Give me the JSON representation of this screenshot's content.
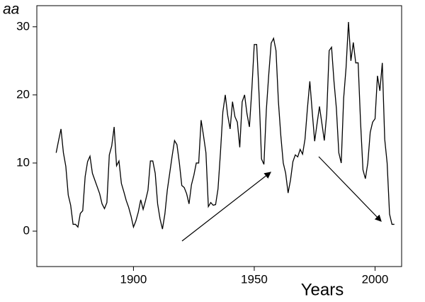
{
  "chart_data": {
    "type": "line",
    "y_label": "aa",
    "x_label": "Years",
    "color": "#000000",
    "x": [
      1868,
      1869,
      1870,
      1871,
      1872,
      1873,
      1874,
      1875,
      1876,
      1877,
      1878,
      1879,
      1880,
      1881,
      1882,
      1883,
      1884,
      1885,
      1886,
      1887,
      1888,
      1889,
      1890,
      1891,
      1892,
      1893,
      1894,
      1895,
      1896,
      1897,
      1898,
      1899,
      1900,
      1901,
      1902,
      1903,
      1904,
      1905,
      1906,
      1907,
      1908,
      1909,
      1910,
      1911,
      1912,
      1913,
      1914,
      1915,
      1916,
      1917,
      1918,
      1919,
      1920,
      1921,
      1922,
      1923,
      1924,
      1925,
      1926,
      1927,
      1928,
      1929,
      1930,
      1931,
      1932,
      1933,
      1934,
      1935,
      1936,
      1937,
      1938,
      1939,
      1940,
      1941,
      1942,
      1943,
      1944,
      1945,
      1946,
      1947,
      1948,
      1949,
      1950,
      1951,
      1952,
      1953,
      1954,
      1955,
      1956,
      1957,
      1958,
      1959,
      1960,
      1961,
      1962,
      1963,
      1964,
      1965,
      1966,
      1967,
      1968,
      1969,
      1970,
      1971,
      1972,
      1973,
      1974,
      1975,
      1976,
      1977,
      1978,
      1979,
      1980,
      1981,
      1982,
      1983,
      1984,
      1985,
      1986,
      1987,
      1988,
      1989,
      1990,
      1991,
      1992,
      1993,
      1994,
      1995,
      1996,
      1997,
      1998,
      1999,
      2000,
      2001,
      2002,
      2003,
      2004,
      2005,
      2006,
      2007,
      2008
    ],
    "values": [
      11.5,
      13.3,
      15.0,
      11.5,
      9.5,
      5.3,
      3.8,
      1.0,
      1.0,
      0.6,
      2.6,
      3.0,
      8.0,
      10.2,
      11.0,
      8.5,
      7.5,
      6.5,
      5.5,
      4.0,
      3.3,
      4.2,
      11.2,
      12.5,
      15.3,
      9.6,
      10.3,
      7.0,
      5.8,
      4.5,
      3.5,
      2.2,
      0.6,
      1.5,
      2.8,
      4.6,
      3.2,
      4.5,
      6.0,
      10.3,
      10.3,
      8.5,
      4.0,
      1.8,
      0.3,
      2.5,
      6.0,
      8.5,
      11.0,
      13.3,
      12.7,
      10.0,
      6.7,
      6.4,
      5.5,
      4.0,
      6.8,
      8.2,
      10.0,
      10.0,
      16.3,
      14.0,
      11.5,
      3.6,
      4.2,
      3.8,
      3.9,
      6.2,
      11.5,
      17.5,
      20.0,
      17.0,
      15.0,
      19.0,
      16.8,
      16.0,
      12.3,
      19.0,
      20.0,
      17.2,
      15.3,
      20.8,
      27.4,
      27.4,
      20.0,
      10.6,
      9.8,
      17.8,
      23.0,
      27.6,
      28.3,
      26.5,
      19.0,
      14.0,
      10.0,
      8.5,
      5.6,
      7.5,
      10.2,
      11.2,
      10.9,
      12.0,
      11.3,
      13.5,
      18.0,
      22.0,
      17.5,
      13.2,
      15.8,
      18.3,
      15.8,
      13.3,
      17.2,
      26.5,
      27.0,
      22.0,
      18.0,
      11.5,
      10.0,
      19.5,
      24.0,
      30.7,
      25.0,
      27.7,
      24.7,
      24.7,
      16.0,
      9.0,
      7.7,
      10.0,
      14.5,
      16.0,
      16.5,
      22.8,
      20.6,
      24.7,
      13.5,
      10.0,
      2.5,
      1.0,
      1.0
    ],
    "xlim": [
      1860,
      2011
    ],
    "ylim": [
      -5.2,
      33.1
    ],
    "xticks": [
      1900,
      1950,
      2000
    ],
    "yticks": [
      0,
      10,
      20,
      30
    ]
  }
}
